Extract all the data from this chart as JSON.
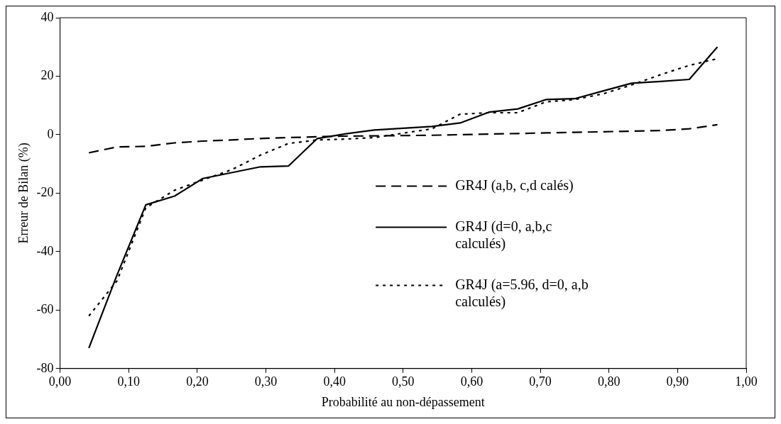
{
  "chart_data": {
    "type": "line",
    "xlabel": "Probabilité au non-dépassement",
    "ylabel": "Erreur de Bilan (%)",
    "x": [
      0.042,
      0.083,
      0.125,
      0.167,
      0.208,
      0.25,
      0.292,
      0.333,
      0.375,
      0.417,
      0.458,
      0.5,
      0.542,
      0.583,
      0.625,
      0.667,
      0.708,
      0.75,
      0.792,
      0.833,
      0.875,
      0.917,
      0.958
    ],
    "series": [
      {
        "name": "GR4J (a,b, c,d calés)",
        "color": "#000000",
        "line_style": "dashed",
        "values": [
          -6.2,
          -4.2,
          -4,
          -2.8,
          -2.2,
          -1.8,
          -1.3,
          -1,
          -0.7,
          -0.5,
          -0.4,
          -0.3,
          -0.2,
          0,
          0.2,
          0.4,
          0.6,
          0.8,
          1,
          1.2,
          1.4,
          2,
          3.4
        ]
      },
      {
        "name": "GR4J (d=0, a,b,c calculés)",
        "color": "#000000",
        "line_style": "solid",
        "values": [
          -73,
          -48,
          -24,
          -21,
          -15,
          -13,
          -11,
          -10.7,
          -1.3,
          0.3,
          1.6,
          2.2,
          2.8,
          4,
          7.7,
          8.8,
          12,
          12.3,
          15,
          17.6,
          18.2,
          18.9,
          30
        ]
      },
      {
        "name": "GR4J (a=5.96, d=0, a,b calculés)",
        "color": "#000000",
        "line_style": "dotted",
        "values": [
          -62,
          -50,
          -25,
          -19,
          -15.5,
          -12,
          -7,
          -3,
          -1.8,
          -1.5,
          -1,
          0.5,
          2,
          7,
          7.5,
          7.5,
          11.2,
          12,
          14,
          17,
          20.5,
          23.7,
          26
        ]
      }
    ],
    "xlim": [
      0,
      1
    ],
    "xticks": [
      {
        "value": 0,
        "label": "0,00"
      },
      {
        "value": 0.1,
        "label": "0,10"
      },
      {
        "value": 0.2,
        "label": "0,20"
      },
      {
        "value": 0.3,
        "label": "0,30"
      },
      {
        "value": 0.4,
        "label": "0,40"
      },
      {
        "value": 0.5,
        "label": "0,50"
      },
      {
        "value": 0.6,
        "label": "0,60"
      },
      {
        "value": 0.7,
        "label": "0,70"
      },
      {
        "value": 0.8,
        "label": "0,80"
      },
      {
        "value": 0.9,
        "label": "0,90"
      },
      {
        "value": 1,
        "label": "1,00"
      }
    ],
    "ylim": [
      -80,
      40
    ],
    "yticks": [
      -80,
      -60,
      -40,
      -20,
      0,
      20,
      40
    ],
    "grid": false,
    "legend": "right",
    "marker": "none"
  }
}
